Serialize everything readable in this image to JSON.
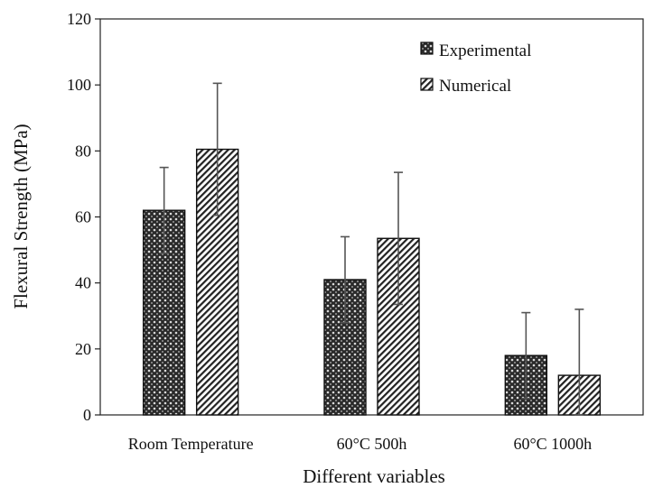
{
  "chart_data": {
    "type": "bar",
    "title": "",
    "xlabel": "Different variables",
    "ylabel": "Flexural Strength (MPa)",
    "ylim": [
      0,
      120
    ],
    "yticks": [
      0,
      20,
      40,
      60,
      80,
      100,
      120
    ],
    "grid": false,
    "legend_position": "top-right",
    "categories": [
      "Room Temperature",
      "60°C 500h",
      "60°C 1000h"
    ],
    "series": [
      {
        "name": "Experimental",
        "pattern": "crosshatch",
        "values": [
          62,
          41,
          18
        ],
        "errors": [
          13,
          13,
          13
        ]
      },
      {
        "name": "Numerical",
        "pattern": "diagonal",
        "values": [
          80.5,
          53.5,
          12
        ],
        "errors": [
          20,
          20,
          20
        ]
      }
    ]
  }
}
